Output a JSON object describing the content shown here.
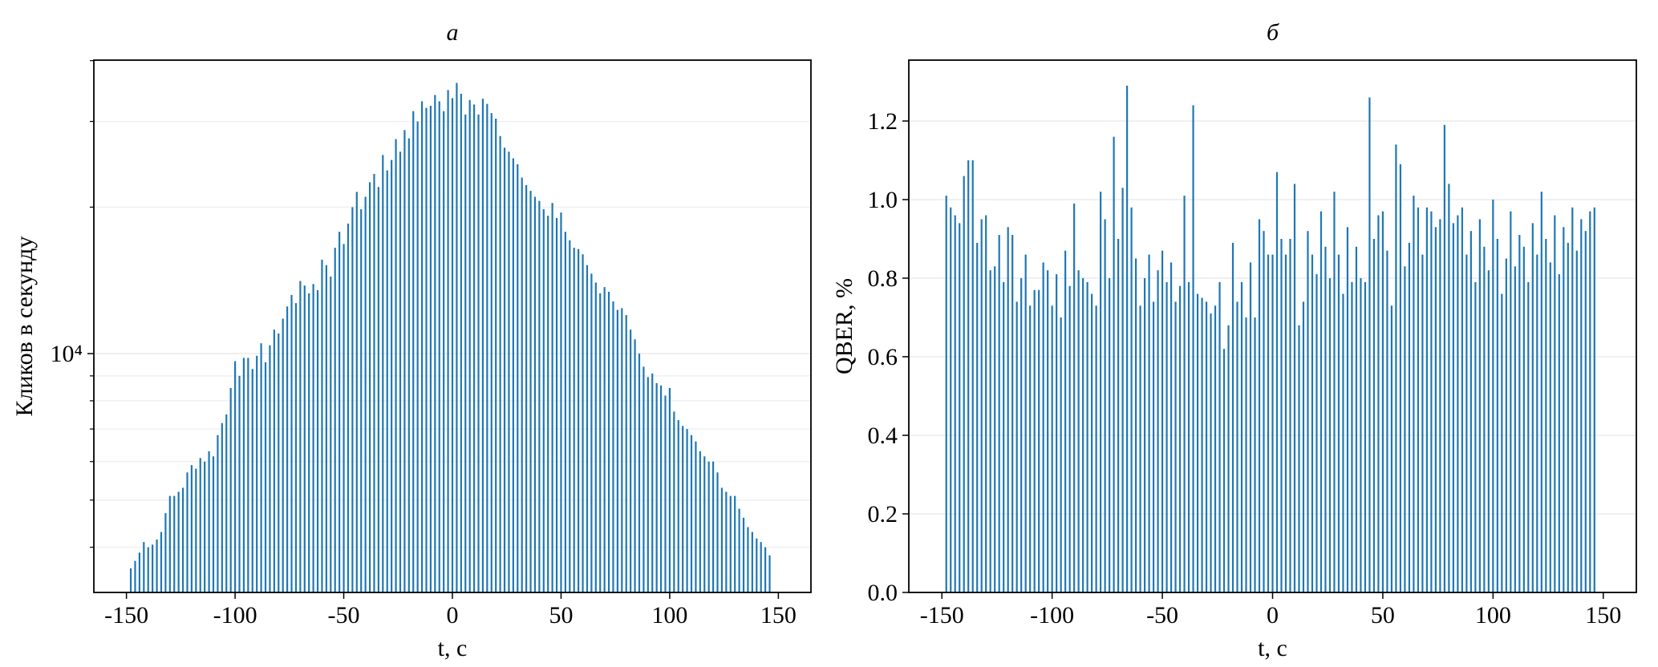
{
  "chart_data": [
    {
      "type": "bar",
      "title": "а",
      "x_label": "t, с",
      "y_label": "Кликов в секунду",
      "color": "#1f77b4",
      "log_y": true,
      "grid": true,
      "x": [
        -148,
        -146,
        -144,
        -142,
        -140,
        -138,
        -136,
        -134,
        -132,
        -130,
        -128,
        -126,
        -124,
        -122,
        -120,
        -118,
        -116,
        -114,
        -112,
        -110,
        -108,
        -106,
        -104,
        -102,
        -100,
        -98,
        -96,
        -94,
        -92,
        -90,
        -88,
        -86,
        -84,
        -82,
        -80,
        -78,
        -76,
        -74,
        -72,
        -70,
        -68,
        -66,
        -64,
        -62,
        -60,
        -58,
        -56,
        -54,
        -52,
        -50,
        -48,
        -46,
        -44,
        -42,
        -40,
        -38,
        -36,
        -34,
        -32,
        -30,
        -28,
        -26,
        -24,
        -22,
        -20,
        -18,
        -16,
        -14,
        -12,
        -10,
        -8,
        -6,
        -4,
        -2,
        0,
        2,
        4,
        6,
        8,
        10,
        12,
        14,
        16,
        18,
        20,
        22,
        24,
        26,
        28,
        30,
        32,
        34,
        36,
        38,
        40,
        42,
        44,
        46,
        48,
        50,
        52,
        54,
        56,
        58,
        60,
        62,
        64,
        66,
        68,
        70,
        72,
        74,
        76,
        78,
        80,
        82,
        84,
        86,
        88,
        90,
        92,
        94,
        96,
        98,
        100,
        102,
        104,
        106,
        108,
        110,
        112,
        114,
        116,
        118,
        120,
        122,
        124,
        126,
        128,
        130,
        132,
        134,
        136,
        138,
        140,
        142,
        144,
        146
      ],
      "values": [
        3620,
        3750,
        3900,
        4100,
        4000,
        4050,
        4150,
        4300,
        4700,
        5100,
        5100,
        5200,
        5300,
        5700,
        5900,
        5800,
        6100,
        6000,
        6300,
        6150,
        6800,
        7200,
        7500,
        8500,
        9650,
        9000,
        9800,
        9800,
        9300,
        9900,
        10500,
        9600,
        10400,
        11200,
        11000,
        11800,
        12500,
        13200,
        12700,
        14100,
        13800,
        13300,
        13900,
        13500,
        15600,
        15200,
        14400,
        16500,
        17800,
        16800,
        18500,
        20000,
        21500,
        19800,
        21000,
        22500,
        23400,
        22000,
        25600,
        23800,
        25000,
        27600,
        26000,
        28800,
        27700,
        31500,
        30000,
        33000,
        32000,
        32300,
        34000,
        33000,
        31500,
        34800,
        33500,
        36000,
        34200,
        31000,
        33200,
        32500,
        31000,
        33400,
        32600,
        31200,
        30400,
        28000,
        26500,
        26000,
        25200,
        24500,
        23000,
        22200,
        21600,
        21000,
        20600,
        19800,
        19200,
        20400,
        19000,
        19500,
        17800,
        17100,
        16500,
        16400,
        16000,
        15200,
        14600,
        14000,
        13300,
        13700,
        13400,
        12800,
        12300,
        12400,
        12000,
        11200,
        10700,
        10000,
        9400,
        8950,
        9100,
        8700,
        8600,
        8200,
        8500,
        7600,
        7300,
        7100,
        7000,
        6800,
        6600,
        6300,
        6150,
        6000,
        6000,
        5700,
        5300,
        5200,
        5100,
        5100,
        4800,
        4600,
        4400,
        4300,
        4170,
        4100,
        4000,
        3850
      ],
      "xlim": [
        -165,
        165
      ],
      "xticks": [
        -150,
        -100,
        -50,
        0,
        50,
        100,
        150
      ],
      "ylim": [
        3230,
        40100
      ],
      "yticks": [
        {
          "value": 10000,
          "label": "10⁴"
        }
      ],
      "yticks_minor": [
        4000,
        5000,
        6000,
        7000,
        8000,
        9000,
        20000,
        30000,
        40000
      ]
    },
    {
      "type": "bar",
      "title": "б",
      "x_label": "t, с",
      "y_label": "QBER, %",
      "color": "#1f77b4",
      "log_y": false,
      "grid": true,
      "x": [
        -148,
        -146,
        -144,
        -142,
        -140,
        -138,
        -136,
        -134,
        -132,
        -130,
        -128,
        -126,
        -124,
        -122,
        -120,
        -118,
        -116,
        -114,
        -112,
        -110,
        -108,
        -106,
        -104,
        -102,
        -100,
        -98,
        -96,
        -94,
        -92,
        -90,
        -88,
        -86,
        -84,
        -82,
        -80,
        -78,
        -76,
        -74,
        -72,
        -70,
        -68,
        -66,
        -64,
        -62,
        -60,
        -58,
        -56,
        -54,
        -52,
        -50,
        -48,
        -46,
        -44,
        -42,
        -40,
        -38,
        -36,
        -34,
        -32,
        -30,
        -28,
        -26,
        -24,
        -22,
        -20,
        -18,
        -16,
        -14,
        -12,
        -10,
        -8,
        -6,
        -4,
        -2,
        0,
        2,
        4,
        6,
        8,
        10,
        12,
        14,
        16,
        18,
        20,
        22,
        24,
        26,
        28,
        30,
        32,
        34,
        36,
        38,
        40,
        42,
        44,
        46,
        48,
        50,
        52,
        54,
        56,
        58,
        60,
        62,
        64,
        66,
        68,
        70,
        72,
        74,
        76,
        78,
        80,
        82,
        84,
        86,
        88,
        90,
        92,
        94,
        96,
        98,
        100,
        102,
        104,
        106,
        108,
        110,
        112,
        114,
        116,
        118,
        120,
        122,
        124,
        126,
        128,
        130,
        132,
        134,
        136,
        138,
        140,
        142,
        144,
        146
      ],
      "values": [
        1.01,
        0.98,
        0.96,
        0.94,
        1.06,
        1.1,
        1.1,
        0.89,
        0.95,
        0.96,
        0.82,
        0.83,
        0.91,
        0.79,
        0.93,
        0.91,
        0.74,
        0.8,
        0.86,
        0.73,
        0.77,
        0.77,
        0.84,
        0.82,
        0.73,
        0.81,
        0.7,
        0.87,
        0.78,
        0.99,
        0.82,
        0.8,
        0.79,
        0.76,
        0.73,
        1.02,
        0.95,
        0.8,
        1.16,
        0.9,
        1.03,
        1.29,
        0.98,
        0.85,
        0.73,
        0.8,
        0.86,
        0.74,
        0.82,
        0.87,
        0.79,
        0.84,
        0.74,
        0.78,
        1.01,
        0.79,
        1.24,
        0.76,
        0.75,
        0.74,
        0.71,
        0.73,
        0.79,
        0.62,
        0.68,
        0.89,
        0.74,
        0.79,
        0.7,
        0.84,
        0.7,
        0.95,
        0.92,
        0.86,
        0.86,
        1.07,
        0.9,
        0.86,
        0.9,
        1.04,
        0.68,
        0.74,
        0.92,
        0.86,
        0.81,
        0.97,
        0.88,
        0.8,
        1.02,
        0.86,
        0.76,
        0.93,
        0.79,
        0.88,
        0.8,
        0.79,
        1.26,
        0.9,
        0.96,
        0.97,
        0.87,
        0.73,
        1.14,
        1.09,
        0.83,
        0.89,
        1.01,
        0.98,
        0.86,
        0.98,
        0.97,
        0.93,
        0.95,
        1.19,
        1.04,
        0.94,
        0.96,
        0.98,
        0.86,
        0.92,
        0.79,
        0.95,
        0.88,
        0.82,
        1.0,
        0.9,
        0.76,
        0.85,
        0.97,
        0.83,
        0.91,
        0.88,
        0.79,
        0.94,
        0.86,
        1.02,
        0.9,
        0.84,
        0.96,
        0.81,
        0.93,
        0.89,
        0.98,
        0.87,
        0.95,
        0.92,
        0.97,
        0.98
      ],
      "xlim": [
        -165,
        165
      ],
      "xticks": [
        -150,
        -100,
        -50,
        0,
        50,
        100,
        150
      ],
      "ylim": [
        0,
        1.355
      ],
      "yticks": [
        {
          "value": 0,
          "label": "0.0"
        },
        0.2,
        0.4,
        0.6,
        0.8,
        {
          "value": 1,
          "label": "1.0"
        },
        1.2
      ]
    }
  ]
}
